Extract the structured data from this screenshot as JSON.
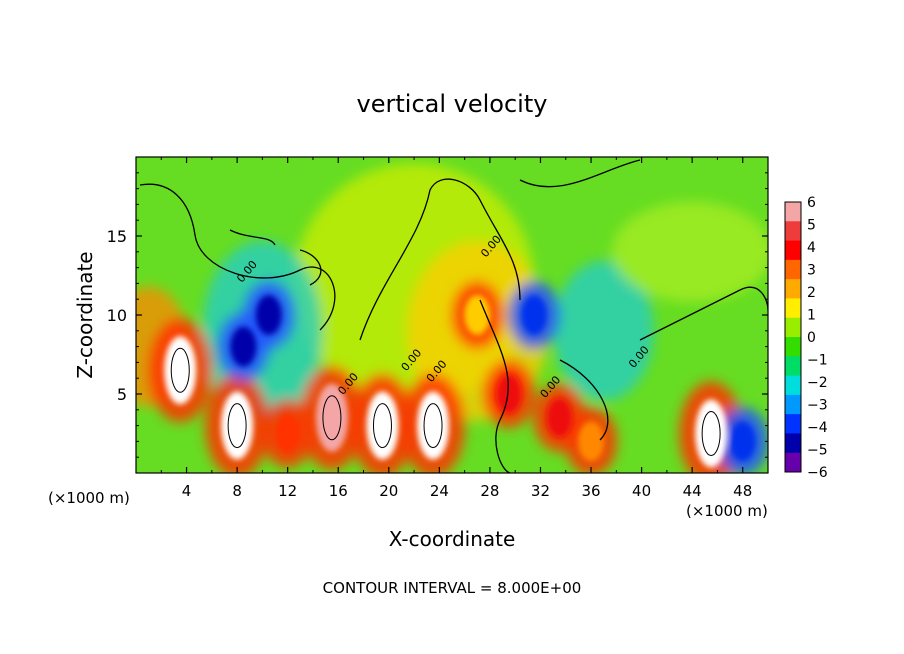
{
  "title": "vertical velocity",
  "footer": "CONTOUR INTERVAL = 8.000E+00",
  "chart_data": {
    "type": "heatmap",
    "title": "vertical velocity",
    "xlabel": "X-coordinate",
    "ylabel": "Z-coordinate",
    "x_unit_label": "(×1000 m)",
    "x_unit_label_lower": "(×1000 m)",
    "xlim": [
      0,
      50
    ],
    "ylim": [
      0,
      20
    ],
    "xticks": [
      4,
      8,
      12,
      16,
      20,
      24,
      28,
      32,
      36,
      40,
      44,
      48
    ],
    "yticks": [
      5,
      10,
      15
    ],
    "colorbar": {
      "ticks": [
        6,
        5,
        4,
        3,
        2,
        1,
        0,
        -1,
        -2,
        -3,
        -4,
        -5,
        -6
      ],
      "colors": [
        "#f4a6a6",
        "#ee3b3b",
        "#ff0000",
        "#ff6600",
        "#ffaa00",
        "#ffee00",
        "#99ee00",
        "#33dd00",
        "#00dd66",
        "#00dddd",
        "#0099ff",
        "#0033ff",
        "#0000aa",
        "#6600aa"
      ]
    },
    "contour_label": "0.00",
    "features": [
      {
        "x": 3.5,
        "z": 6.5,
        "w": 9,
        "kind": "updraft"
      },
      {
        "x": 8,
        "z": 3,
        "w": 9,
        "kind": "updraft"
      },
      {
        "x": 8.5,
        "z": 8,
        "w": -5,
        "kind": "downdraft"
      },
      {
        "x": 10.5,
        "z": 10,
        "w": -5,
        "kind": "downdraft"
      },
      {
        "x": 12,
        "z": 2.5,
        "w": 4,
        "kind": "updraft"
      },
      {
        "x": 15.5,
        "z": 3.5,
        "w": 8,
        "kind": "updraft"
      },
      {
        "x": 19.5,
        "z": 3,
        "w": 9,
        "kind": "updraft"
      },
      {
        "x": 23.5,
        "z": 3,
        "w": 9,
        "kind": "updraft"
      },
      {
        "x": 29.5,
        "z": 5,
        "w": 5,
        "kind": "updraft"
      },
      {
        "x": 27,
        "z": 10,
        "w": 2,
        "kind": "updraft"
      },
      {
        "x": 31.5,
        "z": 10,
        "w": -4,
        "kind": "downdraft"
      },
      {
        "x": 33.5,
        "z": 3.5,
        "w": 5,
        "kind": "updraft"
      },
      {
        "x": 36,
        "z": 2,
        "w": 3,
        "kind": "updraft"
      },
      {
        "x": 45.5,
        "z": 2.5,
        "w": 9,
        "kind": "updraft"
      },
      {
        "x": 48,
        "z": 2,
        "w": -4,
        "kind": "downdraft"
      }
    ]
  }
}
